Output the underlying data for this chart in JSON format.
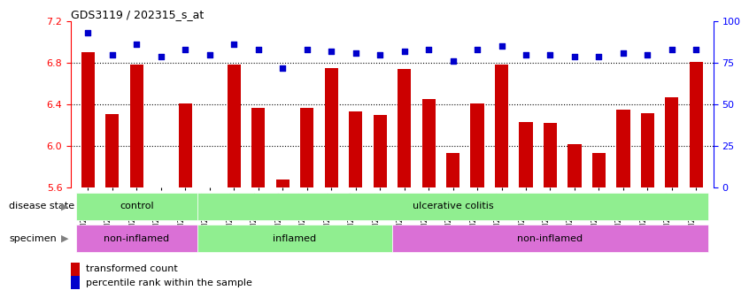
{
  "title": "GDS3119 / 202315_s_at",
  "samples": [
    "GSM240023",
    "GSM240024",
    "GSM240025",
    "GSM240026",
    "GSM240027",
    "GSM239617",
    "GSM239618",
    "GSM239714",
    "GSM239716",
    "GSM239717",
    "GSM239718",
    "GSM239719",
    "GSM239720",
    "GSM239723",
    "GSM239725",
    "GSM239726",
    "GSM239727",
    "GSM239729",
    "GSM239730",
    "GSM239731",
    "GSM239732",
    "GSM240022",
    "GSM240028",
    "GSM240029",
    "GSM240030",
    "GSM240031"
  ],
  "transformed_count": [
    6.9,
    6.31,
    6.78,
    5.57,
    6.41,
    5.58,
    6.78,
    6.37,
    5.68,
    6.37,
    6.75,
    6.33,
    6.3,
    6.74,
    6.45,
    5.93,
    6.41,
    6.78,
    6.23,
    6.22,
    6.02,
    5.93,
    6.35,
    6.32,
    6.47,
    6.81
  ],
  "percentile_rank": [
    93,
    80,
    86,
    79,
    83,
    80,
    86,
    83,
    72,
    83,
    82,
    81,
    80,
    82,
    83,
    76,
    83,
    85,
    80,
    80,
    79,
    79,
    81,
    80,
    83,
    83
  ],
  "ylim_left": [
    5.6,
    7.2
  ],
  "ylim_right": [
    0,
    100
  ],
  "yticks_left": [
    5.6,
    6.0,
    6.4,
    6.8,
    7.2
  ],
  "yticks_right": [
    0,
    25,
    50,
    75,
    100
  ],
  "bar_color": "#cc0000",
  "dot_color": "#0000cc",
  "bg_color": "#ffffff",
  "disease_state_groups": [
    {
      "label": "control",
      "start": 0,
      "end": 5,
      "color": "#90ee90"
    },
    {
      "label": "ulcerative colitis",
      "start": 5,
      "end": 26,
      "color": "#90ee90"
    }
  ],
  "specimen_groups": [
    {
      "label": "non-inflamed",
      "start": 0,
      "end": 5,
      "color": "#da70d6"
    },
    {
      "label": "inflamed",
      "start": 5,
      "end": 13,
      "color": "#90ee90"
    },
    {
      "label": "non-inflamed",
      "start": 13,
      "end": 26,
      "color": "#da70d6"
    }
  ],
  "legend_items": [
    {
      "label": "transformed count",
      "color": "#cc0000"
    },
    {
      "label": "percentile rank within the sample",
      "color": "#0000cc"
    }
  ]
}
